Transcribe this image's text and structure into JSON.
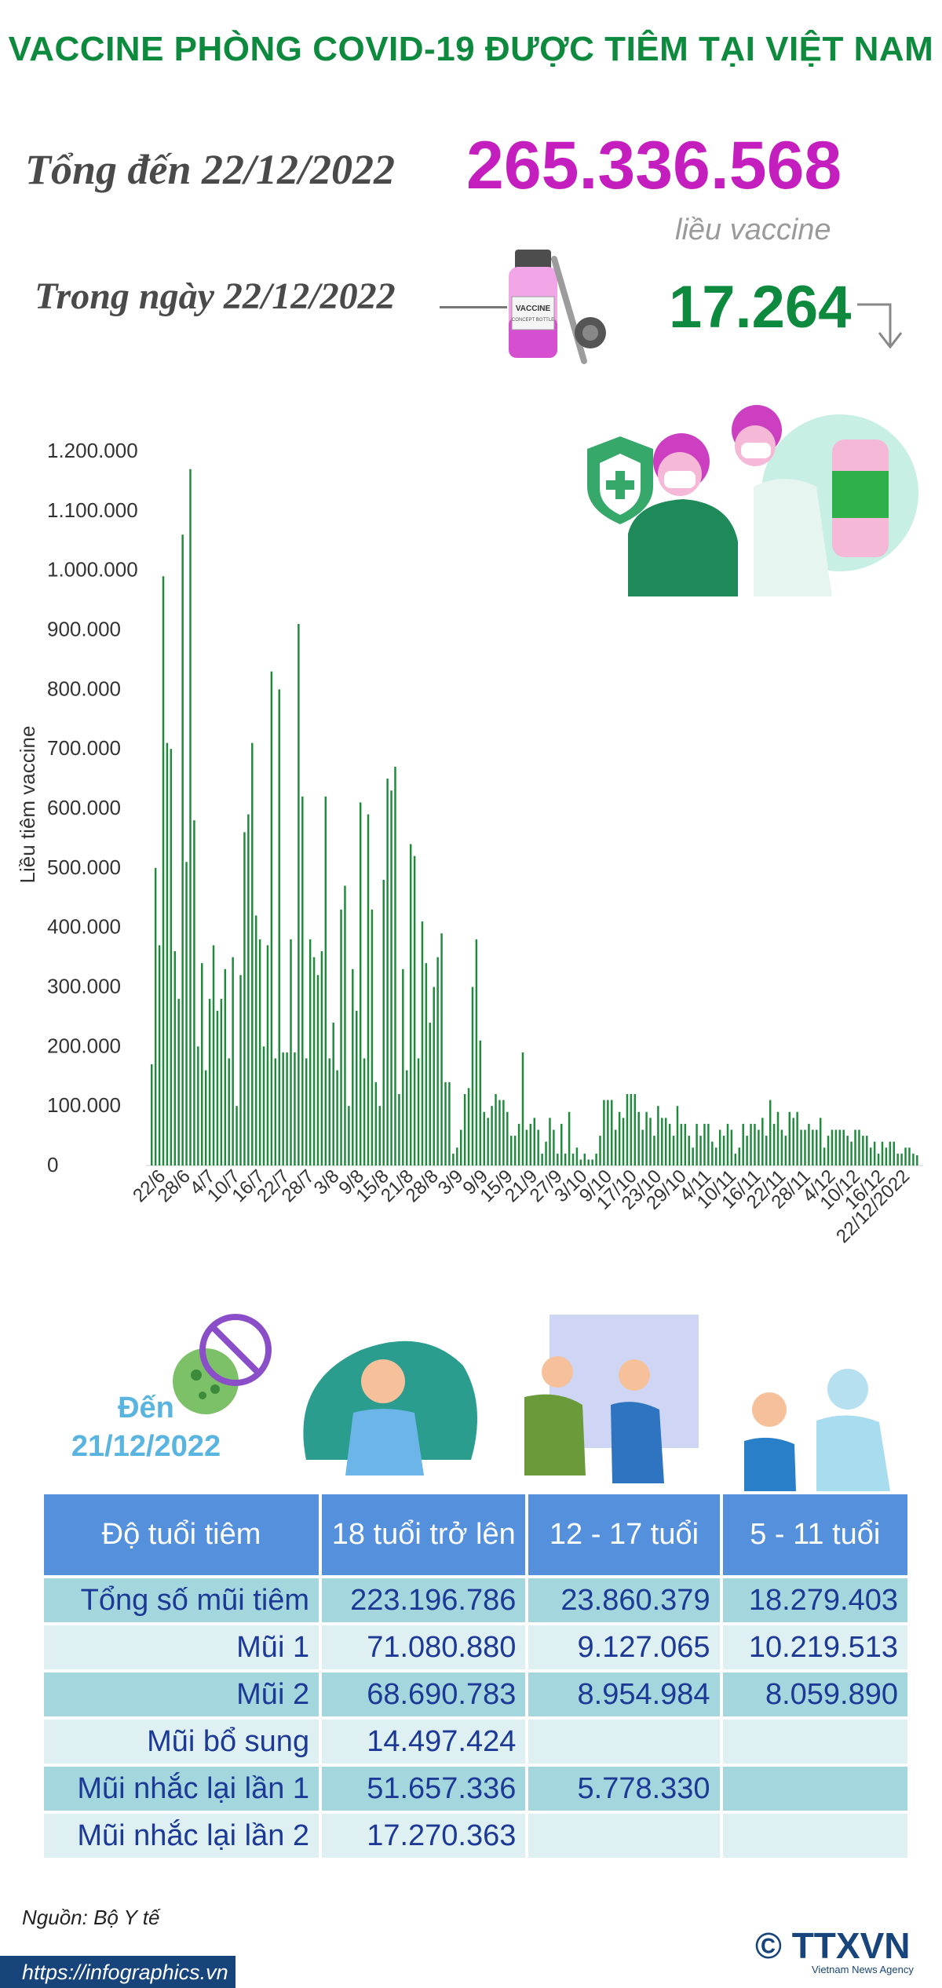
{
  "title": "VACCINE PHÒNG COVID-19 ĐƯỢC TIÊM TẠI VIỆT NAM",
  "summary": {
    "total_label": "Tổng đến 22/12/2022",
    "total_value": "265.336.568",
    "unit": "liều vaccine",
    "daily_label": "Trong ngày 22/12/2022",
    "daily_value": "17.264",
    "trend_icon": "arrow-down-icon",
    "vial_label": "VACCINE",
    "vial_sublabel": "CONCEPT BOTTLE"
  },
  "colors": {
    "title": "#0d8a3e",
    "total": "#c41fbe",
    "daily": "#0d8a3e",
    "bar": "#1f8a3c",
    "table_header": "#5590dc",
    "row_dark": "#a4d6de",
    "row_light": "#dff0f2",
    "table_text": "#1c3a95"
  },
  "chart_data": {
    "type": "bar",
    "ylabel": "Liều tiêm vaccine",
    "ylim": [
      0,
      1200000
    ],
    "yticks": [
      "0",
      "100.000",
      "200.000",
      "300.000",
      "400.000",
      "500.000",
      "600.000",
      "700.000",
      "800.000",
      "900.000",
      "1.000.000",
      "1.100.000",
      "1.200.000"
    ],
    "xticks": [
      "22/6",
      "28/6",
      "4/7",
      "10/7",
      "16/7",
      "22/7",
      "28/7",
      "3/8",
      "9/8",
      "15/8",
      "21/8",
      "28/8",
      "3/9",
      "9/9",
      "15/9",
      "21/9",
      "27/9",
      "3/10",
      "9/10",
      "17/10",
      "23/10",
      "29/10",
      "4/11",
      "10/11",
      "16/11",
      "22/11",
      "28/11",
      "4/12",
      "10/12",
      "16/12",
      "22/12/2022"
    ],
    "values": [
      170000,
      500000,
      370000,
      990000,
      710000,
      700000,
      360000,
      280000,
      1060000,
      510000,
      1170000,
      580000,
      200000,
      340000,
      160000,
      280000,
      370000,
      260000,
      280000,
      330000,
      180000,
      350000,
      100000,
      320000,
      560000,
      590000,
      710000,
      420000,
      380000,
      200000,
      370000,
      830000,
      180000,
      800000,
      190000,
      190000,
      380000,
      190000,
      910000,
      620000,
      180000,
      380000,
      350000,
      320000,
      360000,
      620000,
      180000,
      240000,
      160000,
      430000,
      470000,
      100000,
      330000,
      260000,
      610000,
      180000,
      590000,
      430000,
      140000,
      100000,
      480000,
      650000,
      630000,
      670000,
      120000,
      330000,
      160000,
      540000,
      520000,
      180000,
      410000,
      340000,
      240000,
      300000,
      350000,
      390000,
      140000,
      140000,
      20000,
      30000,
      60000,
      120000,
      130000,
      300000,
      380000,
      210000,
      90000,
      80000,
      100000,
      120000,
      110000,
      110000,
      90000,
      50000,
      50000,
      70000,
      190000,
      60000,
      70000,
      80000,
      60000,
      20000,
      40000,
      80000,
      60000,
      20000,
      70000,
      20000,
      90000,
      20000,
      30000,
      10000,
      20000,
      10000,
      10000,
      20000,
      50000,
      110000,
      110000,
      110000,
      60000,
      90000,
      80000,
      120000,
      120000,
      120000,
      90000,
      60000,
      90000,
      80000,
      50000,
      100000,
      80000,
      80000,
      70000,
      50000,
      100000,
      70000,
      70000,
      50000,
      30000,
      70000,
      50000,
      70000,
      70000,
      40000,
      30000,
      60000,
      50000,
      70000,
      60000,
      20000,
      30000,
      70000,
      50000,
      70000,
      70000,
      60000,
      80000,
      50000,
      110000,
      70000,
      90000,
      60000,
      50000,
      90000,
      80000,
      90000,
      60000,
      60000,
      70000,
      60000,
      60000,
      80000,
      30000,
      50000,
      60000,
      60000,
      60000,
      60000,
      50000,
      40000,
      60000,
      60000,
      50000,
      50000,
      30000,
      40000,
      20000,
      40000,
      30000,
      40000,
      40000,
      20000,
      20000,
      30000,
      30000,
      20000,
      17264
    ]
  },
  "table": {
    "date_label": "Đến",
    "date_value": "21/12/2022",
    "headers": [
      "Độ tuổi tiêm",
      "18 tuổi trở lên",
      "12 - 17 tuổi",
      "5 - 11 tuổi"
    ],
    "rows": [
      [
        "Tổng số mũi tiêm",
        "223.196.786",
        "23.860.379",
        "18.279.403"
      ],
      [
        "Mũi 1",
        "71.080.880",
        "9.127.065",
        "10.219.513"
      ],
      [
        "Mũi 2",
        "68.690.783",
        "8.954.984",
        "8.059.890"
      ],
      [
        "Mũi bổ sung",
        "14.497.424",
        "",
        ""
      ],
      [
        "Mũi nhắc lại lần 1",
        "51.657.336",
        "5.778.330",
        ""
      ],
      [
        "Mũi nhắc lại lần 2",
        "17.270.363",
        "",
        ""
      ]
    ]
  },
  "footer": {
    "source": "Nguồn: Bộ Y tế",
    "url": "https://infographics.vn",
    "logo": "TTXVN",
    "logo_symbol": "©",
    "agency": "Vietnam News Agency"
  }
}
